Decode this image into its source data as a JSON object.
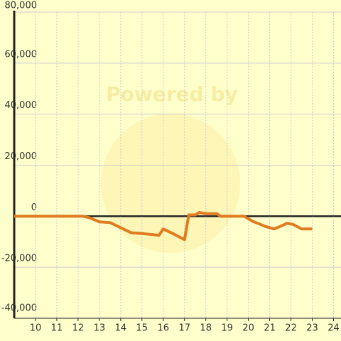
{
  "chart_data": {
    "type": "line",
    "watermark": "Powered by",
    "x": [
      9,
      12.2,
      12.5,
      12.8,
      13.0,
      13.5,
      14.0,
      14.5,
      15.0,
      15.5,
      15.8,
      16.0,
      16.5,
      17.0,
      17.2,
      17.5,
      17.7,
      18.0,
      18.5,
      18.7,
      19.8,
      20.0,
      20.2,
      20.8,
      21.2,
      21.5,
      21.8,
      22.1,
      22.5,
      23.0
    ],
    "series": [
      {
        "color": "#e07b20",
        "values": [
          0,
          0,
          -500,
          -1500,
          -2200,
          -2500,
          -4500,
          -6500,
          -6800,
          -7200,
          -7500,
          -5000,
          -7000,
          -9200,
          500,
          500,
          1500,
          1000,
          1000,
          0,
          0,
          -1000,
          -2000,
          -4000,
          -5000,
          -4000,
          -2800,
          -3200,
          -5000,
          -5000
        ]
      }
    ],
    "xlim": [
      9,
      24.35
    ],
    "xticks": [
      10,
      11,
      12,
      13,
      14,
      15,
      16,
      17,
      18,
      19,
      20,
      21,
      22,
      23,
      24
    ],
    "ylim": [
      -40000,
      80000
    ],
    "yticks": [
      {
        "value": -40000,
        "label": "-40,000"
      },
      {
        "value": -20000,
        "label": "-20,000"
      },
      0,
      {
        "value": 20000,
        "label": "20,000"
      },
      {
        "value": 40000,
        "label": "40,000"
      },
      {
        "value": 60000,
        "label": "60,000"
      },
      {
        "value": 80000,
        "label": "80,000"
      }
    ],
    "grid": true
  }
}
